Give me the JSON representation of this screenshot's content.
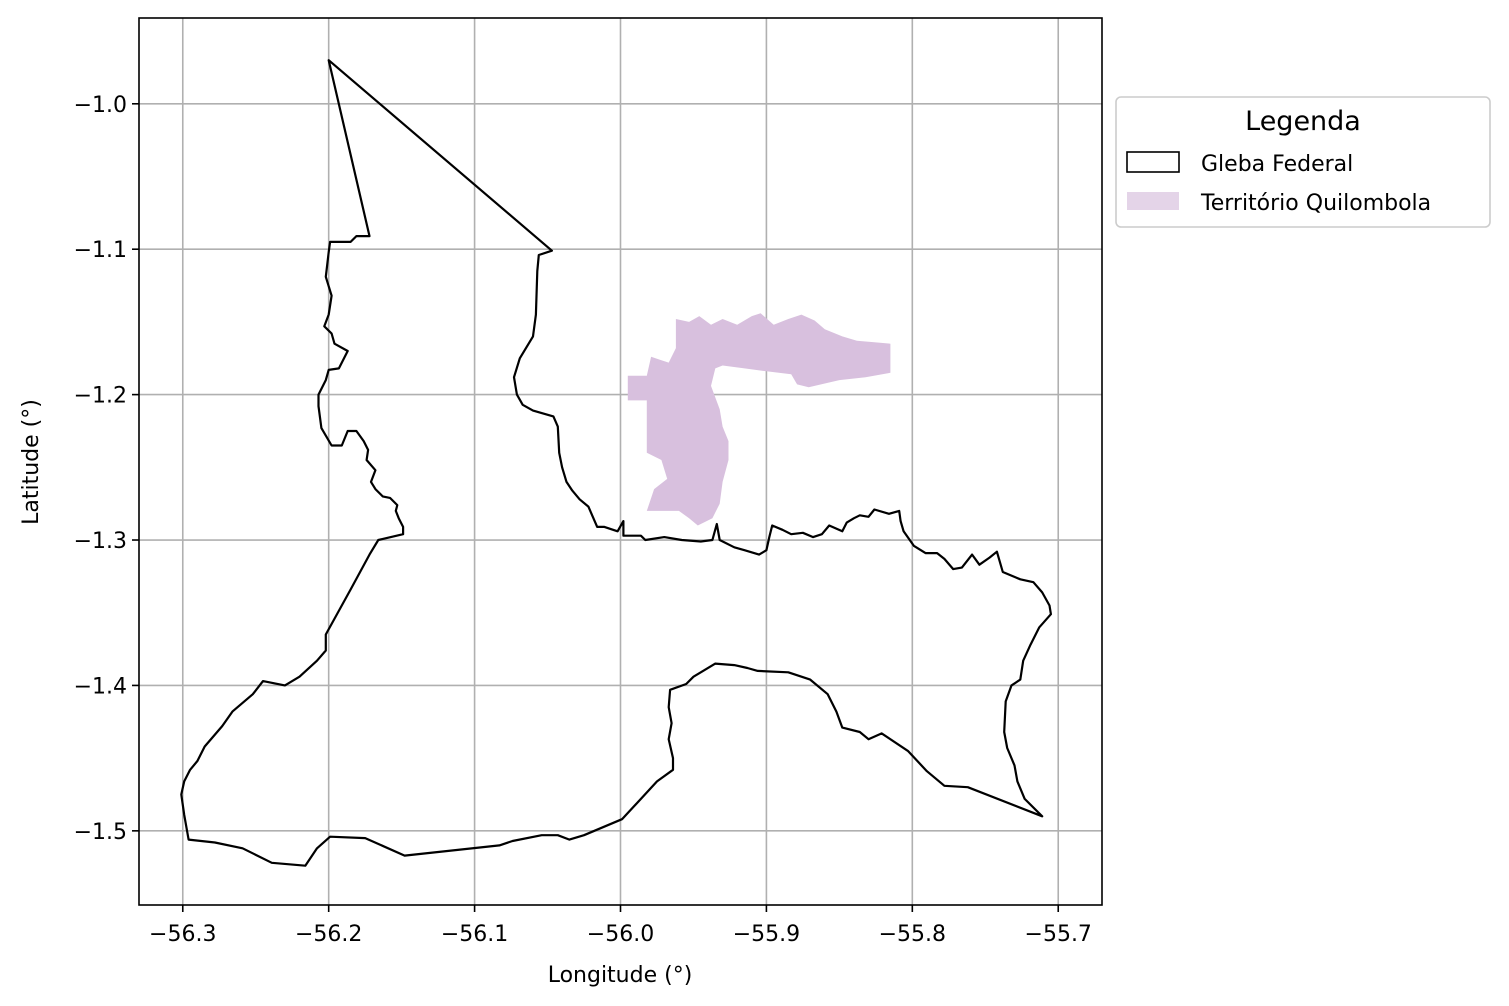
{
  "chart_data": {
    "type": "map",
    "xlabel": "Longitude (°)",
    "ylabel": "Latitude (°)",
    "xlim": [
      -56.33,
      -55.67
    ],
    "ylim": [
      -1.551,
      -0.941
    ],
    "grid": true,
    "x_ticks": [
      -56.3,
      -56.2,
      -56.1,
      -56.0,
      -55.9,
      -55.8,
      -55.7
    ],
    "x_tick_labels": [
      "−56.3",
      "−56.2",
      "−56.1",
      "−56.0",
      "−55.9",
      "−55.8",
      "−55.7"
    ],
    "y_ticks": [
      -1.0,
      -1.1,
      -1.2,
      -1.3,
      -1.4,
      -1.5
    ],
    "y_tick_labels": [
      "−1.0",
      "−1.1",
      "−1.2",
      "−1.3",
      "−1.4",
      "−1.5"
    ],
    "legend": {
      "title": "Legenda",
      "placement": "outside-upper-right",
      "entries": [
        {
          "label": "Gleba Federal",
          "style": "outline",
          "color": "#000000"
        },
        {
          "label": "Território Quilombola",
          "style": "fill",
          "color": "#d8c0de"
        }
      ]
    },
    "layers": [
      {
        "name": "Gleba Federal",
        "style": "outline",
        "color": "#000000",
        "coordinates": [
          [
            -56.2,
            -0.97
          ],
          [
            -56.047,
            -1.101
          ],
          [
            -56.056,
            -1.104
          ],
          [
            -56.057,
            -1.115
          ],
          [
            -56.058,
            -1.145
          ],
          [
            -56.06,
            -1.16
          ],
          [
            -56.069,
            -1.175
          ],
          [
            -56.073,
            -1.188
          ],
          [
            -56.071,
            -1.2
          ],
          [
            -56.067,
            -1.207
          ],
          [
            -56.06,
            -1.211
          ],
          [
            -56.046,
            -1.215
          ],
          [
            -56.043,
            -1.222
          ],
          [
            -56.042,
            -1.24
          ],
          [
            -56.04,
            -1.25
          ],
          [
            -56.037,
            -1.26
          ],
          [
            -56.033,
            -1.266
          ],
          [
            -56.028,
            -1.272
          ],
          [
            -56.022,
            -1.277
          ],
          [
            -56.019,
            -1.284
          ],
          [
            -56.016,
            -1.291
          ],
          [
            -56.011,
            -1.291
          ],
          [
            -56.002,
            -1.294
          ],
          [
            -55.998,
            -1.287
          ],
          [
            -55.998,
            -1.297
          ],
          [
            -55.986,
            -1.297
          ],
          [
            -55.983,
            -1.3
          ],
          [
            -55.97,
            -1.298
          ],
          [
            -55.958,
            -1.3
          ],
          [
            -55.945,
            -1.301
          ],
          [
            -55.937,
            -1.3
          ],
          [
            -55.934,
            -1.289
          ],
          [
            -55.932,
            -1.3
          ],
          [
            -55.922,
            -1.305
          ],
          [
            -55.915,
            -1.307
          ],
          [
            -55.905,
            -1.31
          ],
          [
            -55.9,
            -1.307
          ],
          [
            -55.898,
            -1.298
          ],
          [
            -55.896,
            -1.29
          ],
          [
            -55.889,
            -1.293
          ],
          [
            -55.883,
            -1.296
          ],
          [
            -55.875,
            -1.295
          ],
          [
            -55.868,
            -1.298
          ],
          [
            -55.862,
            -1.296
          ],
          [
            -55.857,
            -1.29
          ],
          [
            -55.848,
            -1.294
          ],
          [
            -55.845,
            -1.288
          ],
          [
            -55.84,
            -1.285
          ],
          [
            -55.836,
            -1.283
          ],
          [
            -55.83,
            -1.284
          ],
          [
            -55.826,
            -1.279
          ],
          [
            -55.816,
            -1.282
          ],
          [
            -55.809,
            -1.28
          ],
          [
            -55.808,
            -1.287
          ],
          [
            -55.806,
            -1.294
          ],
          [
            -55.799,
            -1.304
          ],
          [
            -55.791,
            -1.309
          ],
          [
            -55.783,
            -1.309
          ],
          [
            -55.778,
            -1.313
          ],
          [
            -55.772,
            -1.32
          ],
          [
            -55.766,
            -1.319
          ],
          [
            -55.759,
            -1.31
          ],
          [
            -55.754,
            -1.317
          ],
          [
            -55.747,
            -1.312
          ],
          [
            -55.742,
            -1.308
          ],
          [
            -55.738,
            -1.322
          ],
          [
            -55.726,
            -1.327
          ],
          [
            -55.717,
            -1.329
          ],
          [
            -55.711,
            -1.336
          ],
          [
            -55.706,
            -1.345
          ],
          [
            -55.705,
            -1.351
          ],
          [
            -55.713,
            -1.36
          ],
          [
            -55.719,
            -1.372
          ],
          [
            -55.724,
            -1.383
          ],
          [
            -55.726,
            -1.396
          ],
          [
            -55.732,
            -1.4
          ],
          [
            -55.736,
            -1.411
          ],
          [
            -55.737,
            -1.432
          ],
          [
            -55.735,
            -1.443
          ],
          [
            -55.73,
            -1.455
          ],
          [
            -55.728,
            -1.466
          ],
          [
            -55.723,
            -1.478
          ],
          [
            -55.711,
            -1.49
          ],
          [
            -55.762,
            -1.47
          ],
          [
            -55.778,
            -1.469
          ],
          [
            -55.79,
            -1.459
          ],
          [
            -55.803,
            -1.445
          ],
          [
            -55.821,
            -1.433
          ],
          [
            -55.83,
            -1.437
          ],
          [
            -55.836,
            -1.432
          ],
          [
            -55.848,
            -1.429
          ],
          [
            -55.852,
            -1.418
          ],
          [
            -55.858,
            -1.406
          ],
          [
            -55.87,
            -1.396
          ],
          [
            -55.885,
            -1.391
          ],
          [
            -55.906,
            -1.39
          ],
          [
            -55.913,
            -1.388
          ],
          [
            -55.922,
            -1.386
          ],
          [
            -55.935,
            -1.385
          ],
          [
            -55.945,
            -1.391
          ],
          [
            -55.95,
            -1.394
          ],
          [
            -55.955,
            -1.399
          ],
          [
            -55.966,
            -1.403
          ],
          [
            -55.967,
            -1.415
          ],
          [
            -55.965,
            -1.426
          ],
          [
            -55.967,
            -1.437
          ],
          [
            -55.964,
            -1.45
          ],
          [
            -55.964,
            -1.458
          ],
          [
            -55.975,
            -1.466
          ],
          [
            -55.986,
            -1.478
          ],
          [
            -55.999,
            -1.492
          ],
          [
            -56.025,
            -1.503
          ],
          [
            -56.035,
            -1.506
          ],
          [
            -56.043,
            -1.503
          ],
          [
            -56.054,
            -1.503
          ],
          [
            -56.074,
            -1.507
          ],
          [
            -56.083,
            -1.51
          ],
          [
            -56.148,
            -1.517
          ],
          [
            -56.175,
            -1.505
          ],
          [
            -56.199,
            -1.504
          ],
          [
            -56.208,
            -1.512
          ],
          [
            -56.216,
            -1.524
          ],
          [
            -56.239,
            -1.522
          ],
          [
            -56.259,
            -1.512
          ],
          [
            -56.278,
            -1.508
          ],
          [
            -56.296,
            -1.506
          ],
          [
            -56.299,
            -1.489
          ],
          [
            -56.301,
            -1.475
          ],
          [
            -56.299,
            -1.466
          ],
          [
            -56.295,
            -1.458
          ],
          [
            -56.29,
            -1.452
          ],
          [
            -56.285,
            -1.442
          ],
          [
            -56.273,
            -1.428
          ],
          [
            -56.266,
            -1.418
          ],
          [
            -56.252,
            -1.406
          ],
          [
            -56.245,
            -1.397
          ],
          [
            -56.23,
            -1.4
          ],
          [
            -56.22,
            -1.394
          ],
          [
            -56.208,
            -1.383
          ],
          [
            -56.202,
            -1.376
          ],
          [
            -56.202,
            -1.365
          ],
          [
            -56.185,
            -1.334
          ],
          [
            -56.172,
            -1.31
          ],
          [
            -56.166,
            -1.3
          ],
          [
            -56.149,
            -1.296
          ],
          [
            -56.149,
            -1.291
          ],
          [
            -56.152,
            -1.285
          ],
          [
            -56.154,
            -1.28
          ],
          [
            -56.153,
            -1.276
          ],
          [
            -56.158,
            -1.271
          ],
          [
            -56.163,
            -1.27
          ],
          [
            -56.168,
            -1.265
          ],
          [
            -56.171,
            -1.26
          ],
          [
            -56.168,
            -1.252
          ],
          [
            -56.174,
            -1.245
          ],
          [
            -56.173,
            -1.238
          ],
          [
            -56.176,
            -1.232
          ],
          [
            -56.181,
            -1.225
          ],
          [
            -56.187,
            -1.225
          ],
          [
            -56.191,
            -1.235
          ],
          [
            -56.198,
            -1.235
          ],
          [
            -56.205,
            -1.223
          ],
          [
            -56.207,
            -1.208
          ],
          [
            -56.207,
            -1.2
          ],
          [
            -56.202,
            -1.19
          ],
          [
            -56.2,
            -1.183
          ],
          [
            -56.193,
            -1.182
          ],
          [
            -56.187,
            -1.17
          ],
          [
            -56.196,
            -1.165
          ],
          [
            -56.198,
            -1.158
          ],
          [
            -56.203,
            -1.153
          ],
          [
            -56.2,
            -1.145
          ],
          [
            -56.198,
            -1.132
          ],
          [
            -56.202,
            -1.119
          ],
          [
            -56.2,
            -1.102
          ],
          [
            -56.199,
            -1.095
          ],
          [
            -56.185,
            -1.095
          ],
          [
            -56.181,
            -1.091
          ],
          [
            -56.172,
            -1.091
          ],
          [
            -56.2,
            -0.97
          ]
        ]
      },
      {
        "name": "Território Quilombola",
        "style": "fill",
        "color": "#d8c0de",
        "coordinates": [
          [
            -55.962,
            -1.148
          ],
          [
            -55.953,
            -1.15
          ],
          [
            -55.946,
            -1.146
          ],
          [
            -55.938,
            -1.152
          ],
          [
            -55.93,
            -1.148
          ],
          [
            -55.92,
            -1.152
          ],
          [
            -55.91,
            -1.146
          ],
          [
            -55.904,
            -1.144
          ],
          [
            -55.895,
            -1.152
          ],
          [
            -55.885,
            -1.148
          ],
          [
            -55.876,
            -1.145
          ],
          [
            -55.867,
            -1.149
          ],
          [
            -55.86,
            -1.155
          ],
          [
            -55.848,
            -1.16
          ],
          [
            -55.838,
            -1.163
          ],
          [
            -55.826,
            -1.164
          ],
          [
            -55.815,
            -1.165
          ],
          [
            -55.815,
            -1.185
          ],
          [
            -55.832,
            -1.188
          ],
          [
            -55.85,
            -1.19
          ],
          [
            -55.871,
            -1.195
          ],
          [
            -55.879,
            -1.193
          ],
          [
            -55.883,
            -1.186
          ],
          [
            -55.9,
            -1.184
          ],
          [
            -55.915,
            -1.182
          ],
          [
            -55.93,
            -1.18
          ],
          [
            -55.935,
            -1.182
          ],
          [
            -55.938,
            -1.194
          ],
          [
            -55.932,
            -1.21
          ],
          [
            -55.93,
            -1.222
          ],
          [
            -55.926,
            -1.232
          ],
          [
            -55.926,
            -1.245
          ],
          [
            -55.93,
            -1.26
          ],
          [
            -55.932,
            -1.275
          ],
          [
            -55.937,
            -1.285
          ],
          [
            -55.947,
            -1.29
          ],
          [
            -55.953,
            -1.285
          ],
          [
            -55.96,
            -1.28
          ],
          [
            -55.982,
            -1.28
          ],
          [
            -55.977,
            -1.265
          ],
          [
            -55.968,
            -1.258
          ],
          [
            -55.972,
            -1.245
          ],
          [
            -55.982,
            -1.24
          ],
          [
            -55.982,
            -1.204
          ],
          [
            -55.995,
            -1.204
          ],
          [
            -55.995,
            -1.187
          ],
          [
            -55.982,
            -1.187
          ],
          [
            -55.979,
            -1.174
          ],
          [
            -55.973,
            -1.176
          ],
          [
            -55.967,
            -1.178
          ],
          [
            -55.962,
            -1.168
          ],
          [
            -55.962,
            -1.148
          ]
        ]
      }
    ]
  }
}
